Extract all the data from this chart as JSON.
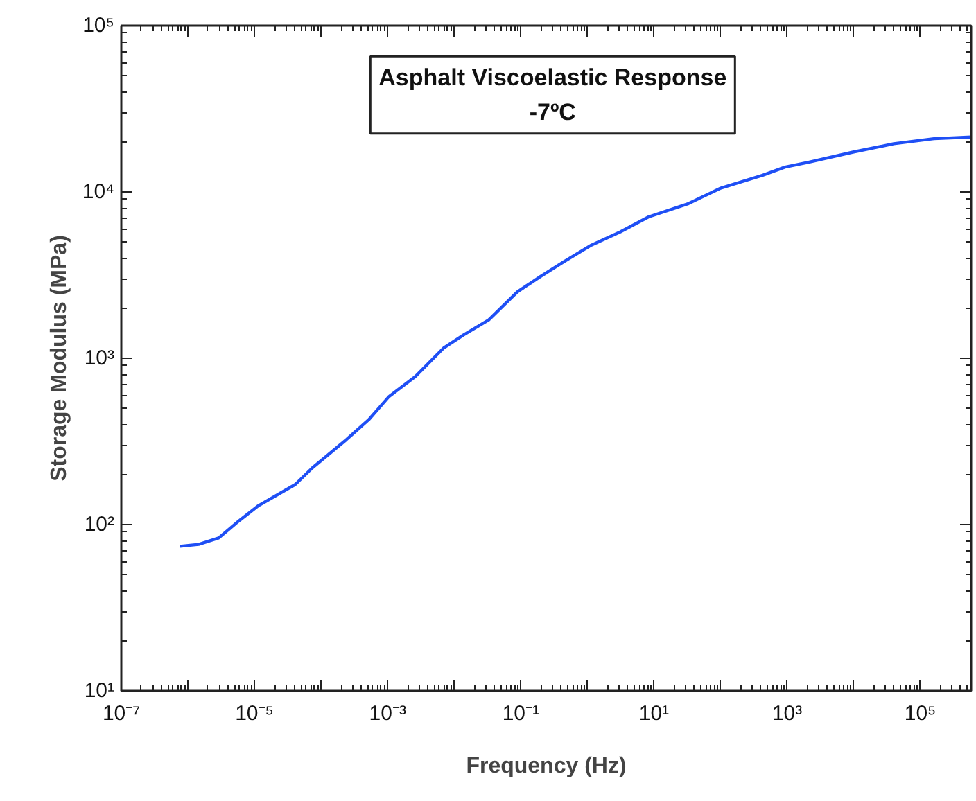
{
  "chart_data": {
    "type": "line",
    "title": "Asphalt Viscoelastic Response\n-7ºC",
    "xlabel": "Frequency (Hz)",
    "ylabel": "Storage Modulus (MPa)",
    "log": "xy",
    "grid": false,
    "marker": "none",
    "line_style": "solid",
    "xlim": [
      1e-07,
      580000.0
    ],
    "ylim": [
      10,
      100000
    ],
    "xticks": [
      {
        "value": 1e-07,
        "label": "10⁻⁷"
      },
      {
        "value": 1e-06,
        "label": null
      },
      {
        "value": 1e-05,
        "label": "10⁻⁵"
      },
      {
        "value": 0.0001,
        "label": null
      },
      {
        "value": 0.001,
        "label": "10⁻³"
      },
      {
        "value": 0.01,
        "label": null
      },
      {
        "value": 0.1,
        "label": "10⁻¹"
      },
      {
        "value": 1,
        "label": null
      },
      {
        "value": 10,
        "label": "10¹"
      },
      {
        "value": 100,
        "label": null
      },
      {
        "value": 1000,
        "label": "10³"
      },
      {
        "value": 10000,
        "label": null
      },
      {
        "value": 100000,
        "label": "10⁵"
      }
    ],
    "yticks": [
      {
        "value": 10,
        "label": "10¹"
      },
      {
        "value": 100,
        "label": "10²"
      },
      {
        "value": 1000,
        "label": "10³"
      },
      {
        "value": 10000,
        "label": "10⁴"
      },
      {
        "value": 100000,
        "label": "10⁵"
      }
    ],
    "series": [
      {
        "color": "#1f4ff5",
        "x": [
          7.6e-07,
          1.45e-06,
          2.9e-06,
          5.8e-06,
          1.12e-05,
          4.1e-05,
          7.4e-05,
          0.00024,
          0.00052,
          0.00105,
          0.0026,
          0.0069,
          0.0138,
          0.033,
          0.089,
          0.195,
          0.44,
          1.15,
          3.1,
          8.3,
          33,
          98,
          430,
          930,
          2100,
          10000,
          40000,
          160000,
          580000
        ],
        "values": [
          74,
          76,
          83,
          105,
          129,
          174,
          219,
          324,
          427,
          589,
          776,
          1150,
          1380,
          1700,
          2510,
          3090,
          3800,
          4790,
          5750,
          7080,
          8510,
          10500,
          12600,
          14100,
          15100,
          17400,
          19500,
          20900,
          21400
        ]
      }
    ]
  }
}
